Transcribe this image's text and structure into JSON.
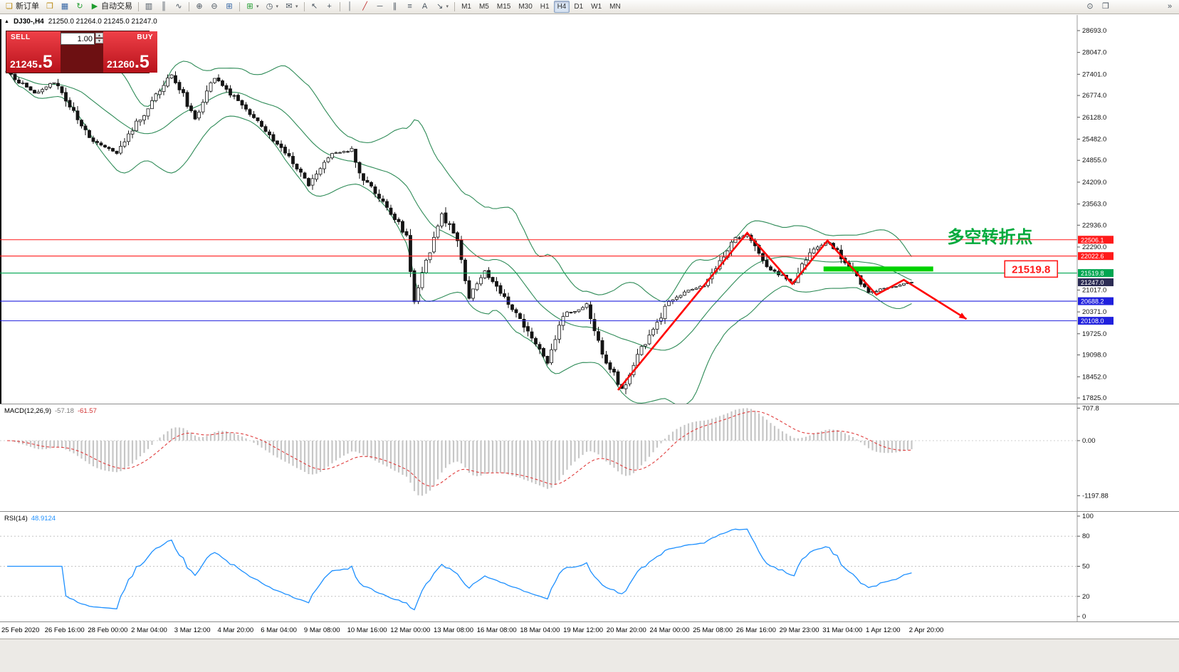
{
  "icons": {
    "new_order": "❏",
    "profiles": "❒",
    "charts": "▦",
    "refresh": "↻",
    "autotrade": "▶",
    "bars": "▥",
    "candles": "║",
    "line_chart": "∿",
    "zoom_in": "⊕",
    "zoom_out": "⊖",
    "grid": "⊞",
    "new_chart": "⊞",
    "period": "◷",
    "template": "✉",
    "cursor": "↖",
    "crosshair": "+",
    "trendline": "╱",
    "hline": "─",
    "vline": "│",
    "channel": "∥",
    "fibo": "≡",
    "text_tool": "A",
    "arrow_tool": "↘",
    "caret": "▾",
    "search": "⊙",
    "new_window": "❐",
    "more": "»",
    "spin_up": "▲",
    "spin_down": "▼",
    "marker": "▲"
  },
  "toolbar": {
    "new_order": "新订单",
    "autotrade": "自动交易",
    "timeframes": [
      "M1",
      "M5",
      "M15",
      "M30",
      "H1",
      "H4",
      "D1",
      "W1",
      "MN"
    ],
    "active_timeframe": "H4"
  },
  "chart_title": {
    "marker": "▲",
    "symbol": "DJ30-,H4",
    "ohlc": "21250.0 21264.0 21245.0 21247.0"
  },
  "order_panel": {
    "sell_label": "SELL",
    "buy_label": "BUY",
    "volume": "1.00",
    "sell_price": "21245",
    "sell_price_frac": ".5",
    "buy_price": "21260",
    "buy_price_frac": ".5"
  },
  "chart_data": {
    "type": "candlestick",
    "symbol": "DJ30-",
    "timeframe": "H4",
    "title": "DJ30-,H4 21250.0 21264.0 21245.0 21247.0",
    "bars": 232,
    "main": {
      "ylim": [
        17657,
        29156
      ],
      "yticks": [
        "28693.0",
        "28047.0",
        "27401.0",
        "26774.0",
        "26128.0",
        "25482.0",
        "24855.0",
        "24209.0",
        "23563.0",
        "22936.0",
        "22290.0",
        "21017.0",
        "20371.0",
        "19725.0",
        "19098.0",
        "18452.0",
        "17825.0"
      ],
      "levels": [
        {
          "price": 22506.1,
          "label": "22506.1",
          "color": "#ff1a1a"
        },
        {
          "price": 22022.6,
          "label": "22022.6",
          "color": "#ff1a1a"
        },
        {
          "price": 21519.8,
          "label": "21519.8",
          "color": "#00a651"
        },
        {
          "price": 20688.2,
          "label": "20688.2",
          "color": "#2020dd"
        },
        {
          "price": 20108.0,
          "label": "20108.0",
          "color": "#2020dd"
        }
      ],
      "current_price": {
        "value": 21247.0,
        "label": "21247.0",
        "badge_color": "#2c2c54"
      },
      "bollinger": {
        "period": 20,
        "deviation": 2,
        "color": "#2e8b57"
      }
    },
    "price_path": [
      [
        0,
        27470
      ],
      [
        7,
        26840
      ],
      [
        12,
        27160
      ],
      [
        21,
        25470
      ],
      [
        28,
        25050
      ],
      [
        32,
        25790
      ],
      [
        42,
        27365
      ],
      [
        48,
        26100
      ],
      [
        53,
        27300
      ],
      [
        62,
        26210
      ],
      [
        71,
        25050
      ],
      [
        77,
        24100
      ],
      [
        83,
        25050
      ],
      [
        88,
        25150
      ],
      [
        91,
        24310
      ],
      [
        98,
        23260
      ],
      [
        102,
        22630
      ],
      [
        104,
        20730
      ],
      [
        111,
        23260
      ],
      [
        115,
        22420
      ],
      [
        118,
        20730
      ],
      [
        122,
        21570
      ],
      [
        127,
        20730
      ],
      [
        131,
        20100
      ],
      [
        138,
        18840
      ],
      [
        142,
        20310
      ],
      [
        148,
        20520
      ],
      [
        152,
        19050
      ],
      [
        157,
        18100
      ],
      [
        162,
        19260
      ],
      [
        169,
        20625
      ],
      [
        173,
        20940
      ],
      [
        178,
        21150
      ],
      [
        182,
        21790
      ],
      [
        186,
        22520
      ],
      [
        189,
        22630
      ],
      [
        194,
        21680
      ],
      [
        199,
        21370
      ],
      [
        201,
        21260
      ],
      [
        205,
        22100
      ],
      [
        209,
        22420
      ],
      [
        212,
        22200
      ],
      [
        217,
        21370
      ],
      [
        220,
        20940
      ],
      [
        224,
        21050
      ],
      [
        228,
        21150
      ],
      [
        231,
        21247
      ]
    ],
    "macd": {
      "label": "MACD(12,26,9)",
      "value_main": "-57.18",
      "value_signal": "-61.57",
      "ylim": [
        -1533,
        790
      ],
      "axis_labels": [
        {
          "v": 707.8,
          "t": "707.8"
        },
        {
          "v": 0,
          "t": "0.00"
        },
        {
          "v": -1197.88,
          "t": "-1197.88"
        }
      ],
      "hist_color": "#c6c6c6",
      "signal_color": "#e03c3c"
    },
    "rsi": {
      "label": "RSI(14)",
      "value": "48.9124",
      "levels": [
        80,
        50,
        20
      ],
      "axis_labels": [
        {
          "v": 100,
          "t": "100"
        },
        {
          "v": 80,
          "t": "80"
        },
        {
          "v": 50,
          "t": "50"
        },
        {
          "v": 20,
          "t": "20"
        },
        {
          "v": 0,
          "t": "0"
        }
      ],
      "color": "#1e90ff"
    },
    "time_labels": [
      "25 Feb 2020",
      "26 Feb 16:00",
      "28 Feb 00:00",
      "2 Mar 04:00",
      "3 Mar 12:00",
      "4 Mar 20:00",
      "6 Mar 04:00",
      "9 Mar 08:00",
      "10 Mar 16:00",
      "12 Mar 00:00",
      "13 Mar 08:00",
      "16 Mar 08:00",
      "18 Mar 04:00",
      "19 Mar 12:00",
      "20 Mar 20:00",
      "24 Mar 00:00",
      "25 Mar 08:00",
      "26 Mar 16:00",
      "29 Mar 23:00",
      "31 Mar 04:00",
      "1 Apr 12:00",
      "2 Apr 20:00"
    ],
    "annotations": {
      "zigzag": {
        "color": "#ff0000",
        "width": 2.6,
        "points": [
          [
            156,
            18060
          ],
          [
            189,
            22710
          ],
          [
            200.5,
            21200
          ],
          [
            209.5,
            22480
          ],
          [
            222,
            20880
          ],
          [
            229,
            21320
          ],
          [
            245,
            20160
          ]
        ]
      },
      "support_segment": {
        "color": "#00d200",
        "price": 21640,
        "bar_start": 208.5,
        "bar_end": 236.5,
        "thickness": 7
      },
      "turning_point_text": {
        "text": "多空转折点",
        "color": "#00aa3c",
        "bar": 251,
        "price": 22590,
        "size": 24
      },
      "price_callout": {
        "text": "21519.8",
        "color": "#ff1a1a",
        "bar": 261.5,
        "price": 21630
      }
    }
  }
}
